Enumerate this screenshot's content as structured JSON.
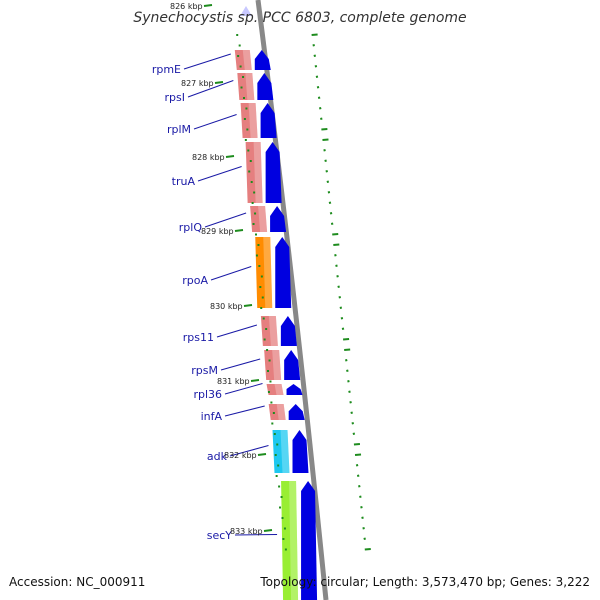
{
  "title": "Synechocystis sp. PCC 6803, complete genome",
  "accession": "Accession: NC_000911",
  "summary": "Topology: circular; Length: 3,573,470 bp; Genes: 3,222",
  "kbp_labels": [
    "826 kbp",
    "827 kbp",
    "828 kbp",
    "829 kbp",
    "830 kbp",
    "831 kbp",
    "832 kbp",
    "833 kbp"
  ],
  "genes": [
    {
      "name": "rpmE",
      "color": "#e57f7f"
    },
    {
      "name": "rpsI",
      "color": "#e57f7f"
    },
    {
      "name": "rplM",
      "color": "#e57f7f"
    },
    {
      "name": "truA",
      "color": "#e57f7f"
    },
    {
      "name": "rplQ",
      "color": "#e57f7f"
    },
    {
      "name": "rpoA",
      "color": "#ff8c00"
    },
    {
      "name": "rps11",
      "color": "#e57f7f"
    },
    {
      "name": "rpsM",
      "color": "#e57f7f"
    },
    {
      "name": "rpl36",
      "color": "#e57f7f"
    },
    {
      "name": "infA",
      "color": "#e57f7f"
    },
    {
      "name": "adk",
      "color": "#1ec8f0"
    },
    {
      "name": "secY",
      "color": "#99ee33"
    }
  ],
  "colors": {
    "cds_arrow": "#0000e0",
    "backbone": "#888888",
    "gc_ticks": "#1e8c1e",
    "label_line": "#1a1aa6"
  }
}
